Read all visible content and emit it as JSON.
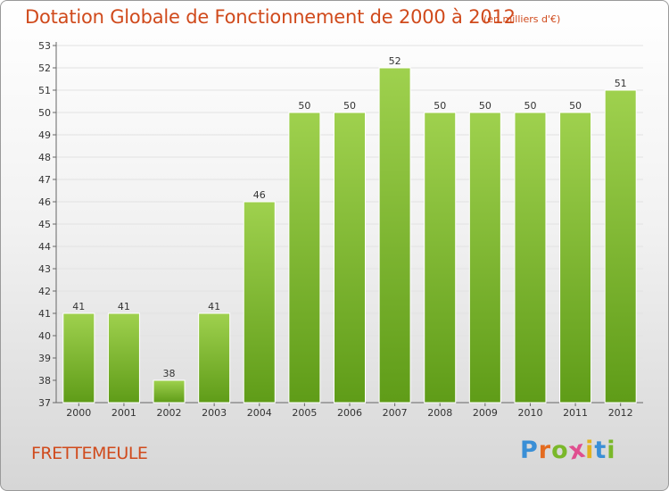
{
  "title": "Dotation Globale de Fonctionnement de 2000 à 2012",
  "subtitle": "(en milliers d'€)",
  "place_name": "FRETTEMEULE",
  "logo": {
    "letters": [
      "P",
      "r",
      "o",
      "x",
      "i",
      "t",
      "i"
    ],
    "colors": [
      "#3a8fd6",
      "#e46b1f",
      "#7ab82a",
      "#e04f8f",
      "#e2b21f",
      "#3a8fd6",
      "#7ab82a"
    ]
  },
  "chart_data": {
    "type": "bar",
    "categories": [
      "2000",
      "2001",
      "2002",
      "2003",
      "2004",
      "2005",
      "2006",
      "2007",
      "2008",
      "2009",
      "2010",
      "2011",
      "2012"
    ],
    "values": [
      41,
      41,
      38,
      41,
      46,
      50,
      50,
      52,
      50,
      50,
      50,
      50,
      51
    ],
    "data_labels": [
      "41",
      "41",
      "38",
      "41",
      "46",
      "50",
      "50",
      "52",
      "50",
      "50",
      "50",
      "50",
      "51"
    ],
    "y_ticks": [
      "37",
      "38",
      "39",
      "40",
      "41",
      "42",
      "43",
      "44",
      "45",
      "46",
      "47",
      "48",
      "49",
      "50",
      "51",
      "52",
      "53"
    ],
    "ylim": [
      37,
      53
    ],
    "grid": true,
    "bar_color": "#7cbb2a",
    "xlabel": "",
    "ylabel": ""
  }
}
